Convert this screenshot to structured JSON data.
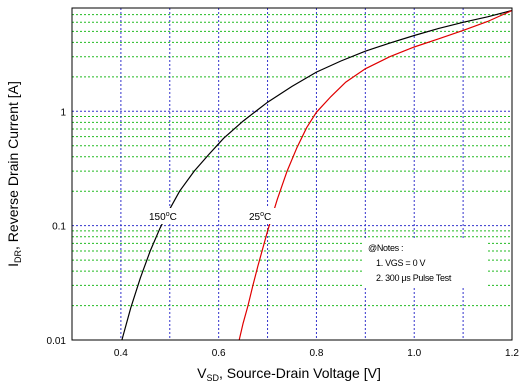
{
  "chart_data": {
    "type": "line",
    "x_scale": "linear",
    "y_scale": "log",
    "xlim": [
      0.3,
      1.2
    ],
    "ylim": [
      0.01,
      8
    ],
    "x_ticks": [
      0.4,
      0.6,
      0.8,
      1.0,
      1.2
    ],
    "x_tick_labels": [
      "0.4",
      "0.6",
      "0.8",
      "1.0",
      "1.2"
    ],
    "x_grid_values": [
      0.4,
      0.5,
      0.6,
      0.7,
      0.8,
      0.9,
      1.0,
      1.1
    ],
    "y_ticks": [
      0.01,
      0.1,
      1
    ],
    "y_tick_labels": [
      "0.01",
      "0.1",
      "1"
    ],
    "grid": true,
    "xlabel": {
      "main": "V",
      "sub": "SD",
      "rest": ", Source-Drain Voltage [V]"
    },
    "ylabel": {
      "main": "I",
      "sub": "DR",
      "rest": ", Reverse Drain Current [A]"
    },
    "series": [
      {
        "color": "#000000",
        "points": [
          [
            0.402,
            0.01
          ],
          [
            0.42,
            0.019
          ],
          [
            0.44,
            0.035
          ],
          [
            0.46,
            0.06
          ],
          [
            0.48,
            0.095
          ],
          [
            0.5,
            0.14
          ],
          [
            0.52,
            0.2
          ],
          [
            0.55,
            0.3
          ],
          [
            0.58,
            0.42
          ],
          [
            0.61,
            0.58
          ],
          [
            0.65,
            0.82
          ],
          [
            0.7,
            1.2
          ],
          [
            0.75,
            1.65
          ],
          [
            0.8,
            2.2
          ],
          [
            0.85,
            2.75
          ],
          [
            0.9,
            3.35
          ],
          [
            0.95,
            3.95
          ],
          [
            1.0,
            4.6
          ],
          [
            1.05,
            5.3
          ],
          [
            1.1,
            6.0
          ],
          [
            1.15,
            6.7
          ],
          [
            1.2,
            7.6
          ]
        ]
      },
      {
        "color": "#e00000",
        "points": [
          [
            0.642,
            0.01
          ],
          [
            0.65,
            0.014
          ],
          [
            0.66,
            0.02
          ],
          [
            0.67,
            0.03
          ],
          [
            0.68,
            0.044
          ],
          [
            0.7,
            0.09
          ],
          [
            0.72,
            0.17
          ],
          [
            0.74,
            0.3
          ],
          [
            0.76,
            0.48
          ],
          [
            0.78,
            0.72
          ],
          [
            0.8,
            0.98
          ],
          [
            0.83,
            1.35
          ],
          [
            0.86,
            1.8
          ],
          [
            0.9,
            2.35
          ],
          [
            0.95,
            3.0
          ],
          [
            1.0,
            3.65
          ],
          [
            1.05,
            4.3
          ],
          [
            1.1,
            5.1
          ],
          [
            1.15,
            6.1
          ],
          [
            1.2,
            7.6
          ]
        ]
      }
    ],
    "annotations": [
      {
        "id": "temp150",
        "base": "150",
        "sup": "o",
        "tail": "C"
      },
      {
        "id": "temp25",
        "base": "25",
        "sup": "o",
        "tail": "C"
      }
    ],
    "notes": {
      "title": "@Notes :",
      "lines": [
        "1. VGS = 0 V",
        "2. 300 μs Pulse Test"
      ]
    },
    "colors": {
      "frame": "#000000",
      "major_grid": "#3333cc",
      "minor_grid": "#22bb22"
    }
  }
}
